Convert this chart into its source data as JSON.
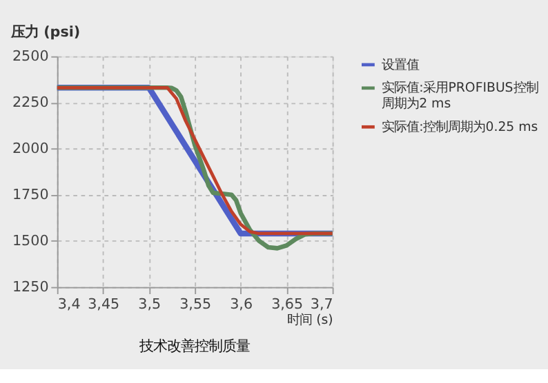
{
  "chart_data": {
    "type": "line",
    "title": "技术改善控制质量",
    "xlabel": "时间 (s)",
    "ylabel": "压力 (psi)",
    "xlim": [
      3.4,
      3.7
    ],
    "ylim": [
      1250,
      2500
    ],
    "xticks": [
      {
        "value": 3.4,
        "label": "3,4"
      },
      {
        "value": 3.45,
        "label": "3,45"
      },
      {
        "value": 3.5,
        "label": "3,5"
      },
      {
        "value": 3.55,
        "label": "3,55"
      },
      {
        "value": 3.6,
        "label": "3,6"
      },
      {
        "value": 3.65,
        "label": "3,65"
      },
      {
        "value": 3.7,
        "label": "3,7"
      }
    ],
    "yticks": [
      1250,
      1500,
      1750,
      2000,
      2250,
      2500
    ],
    "grid": true,
    "legend": "right",
    "line_style": "solid",
    "marker": "none",
    "series": [
      {
        "name": "设置值",
        "color": "#5060c8",
        "x": [
          3.4,
          3.5,
          3.6,
          3.7
        ],
        "values": [
          2330,
          2330,
          1540,
          1540
        ]
      },
      {
        "name": "实际值:采用PROFIBUS控制周期为2 ms",
        "color": "#5e8a5e",
        "x": [
          3.4,
          3.52,
          3.525,
          3.53,
          3.535,
          3.54,
          3.55,
          3.56,
          3.565,
          3.57,
          3.58,
          3.59,
          3.595,
          3.6,
          3.61,
          3.62,
          3.63,
          3.64,
          3.65,
          3.66,
          3.67,
          3.68,
          3.7
        ],
        "values": [
          2330,
          2330,
          2328,
          2315,
          2280,
          2200,
          2020,
          1880,
          1800,
          1760,
          1755,
          1750,
          1720,
          1650,
          1560,
          1500,
          1465,
          1460,
          1475,
          1510,
          1535,
          1540,
          1540
        ]
      },
      {
        "name": "实际值:控制周期为0.25 ms",
        "color": "#c0402a",
        "x": [
          3.4,
          3.52,
          3.53,
          3.54,
          3.55,
          3.56,
          3.57,
          3.58,
          3.59,
          3.6,
          3.61,
          3.62,
          3.7
        ],
        "values": [
          2330,
          2330,
          2270,
          2150,
          2050,
          1950,
          1850,
          1750,
          1660,
          1590,
          1550,
          1540,
          1540
        ]
      }
    ]
  }
}
